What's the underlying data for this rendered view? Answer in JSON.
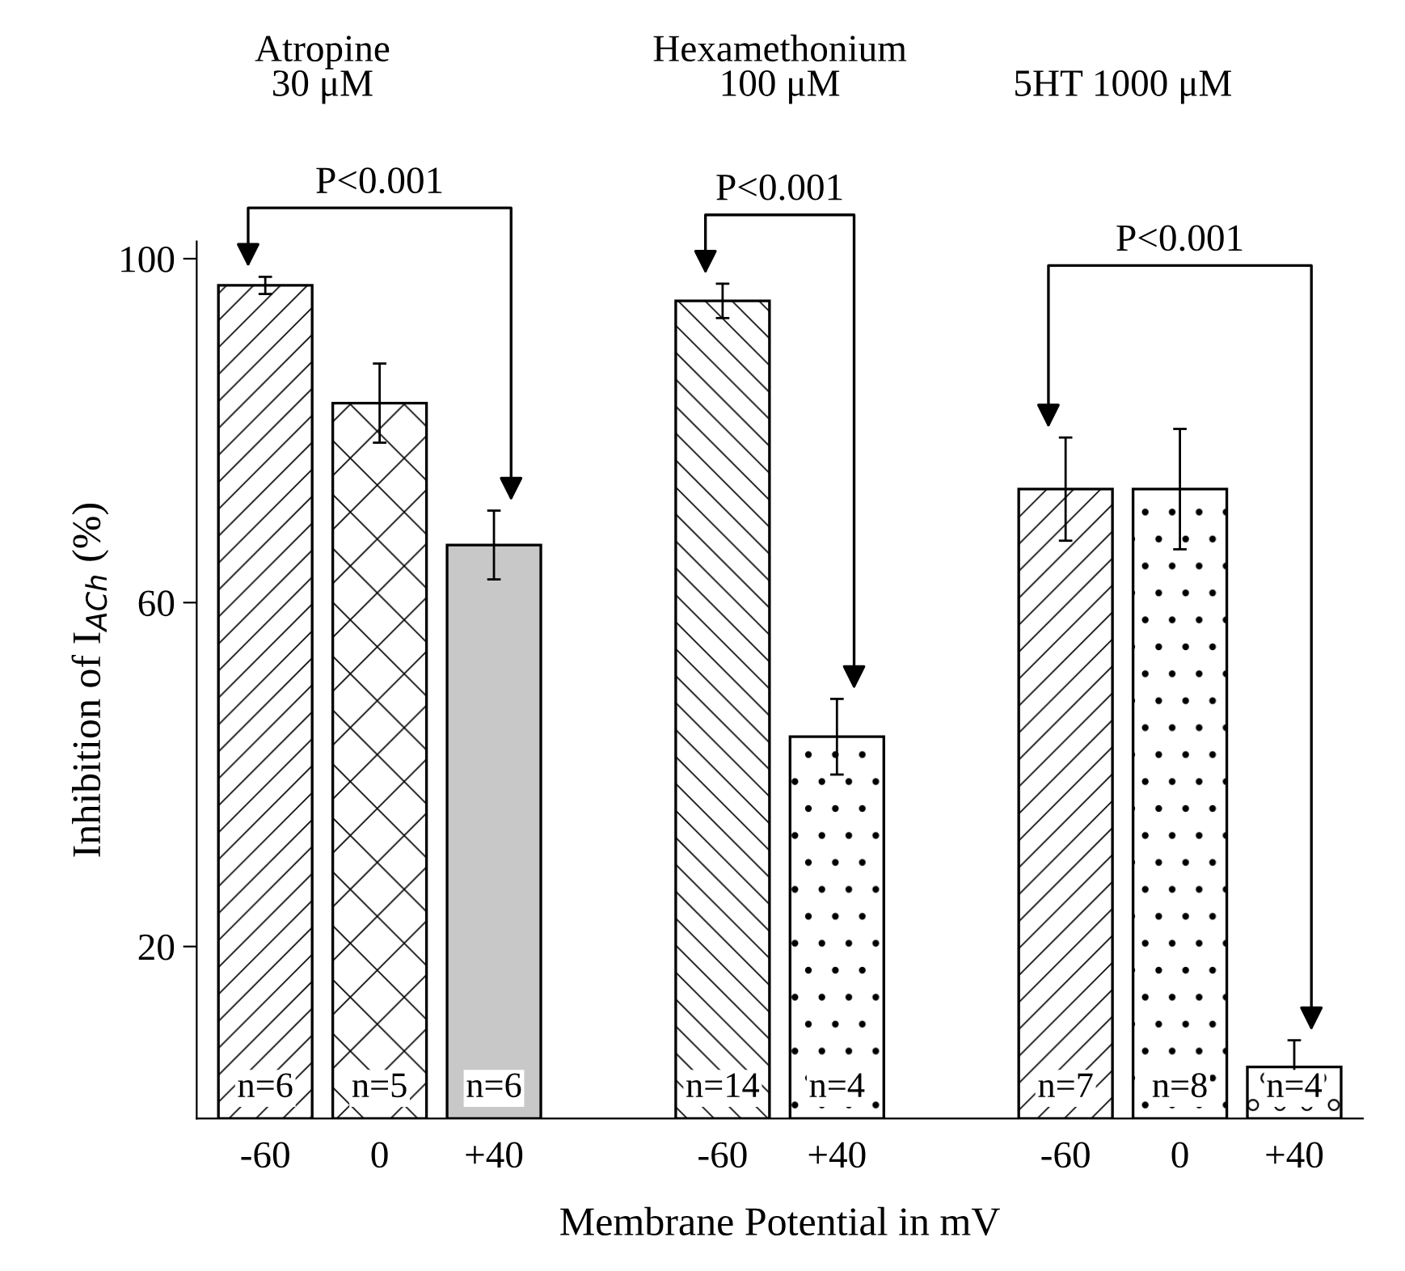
{
  "chart_data": {
    "type": "bar",
    "xlabel": "Membrane Potential in mV",
    "ylabel": "Inhibition of I$_{ACh}$ (%)",
    "categories": [
      "-60",
      "0",
      "+40",
      null,
      "-60",
      "+40",
      null,
      "-60",
      "0",
      "+40"
    ],
    "values": [
      96.9,
      83.2,
      66.7,
      null,
      95.1,
      44.4,
      null,
      73.2,
      73.2,
      6.0
    ],
    "errors": [
      1,
      4.6,
      4,
      null,
      2,
      4.4,
      null,
      6,
      7,
      3.1
    ],
    "colors": [
      "#ffffff",
      "#ffffff",
      "#c8c8c8",
      null,
      "#ffffff",
      "#ffffff",
      null,
      "#ffffff",
      "#ffffff",
      "#ffffff"
    ],
    "ylim": [
      0,
      102
    ],
    "yticks": [
      20,
      60,
      100
    ],
    "grid": false,
    "legend": false,
    "annotations": [
      "Atropine\n30 μM",
      "Hexamethonium\n100 μM",
      "5HT 1000 μM",
      "P<0.001",
      "P<0.001",
      "P<0.001",
      "n=6",
      "n=5",
      "n=6",
      "n=14",
      "n=4",
      "n=7",
      "n=8",
      "n=4"
    ]
  }
}
